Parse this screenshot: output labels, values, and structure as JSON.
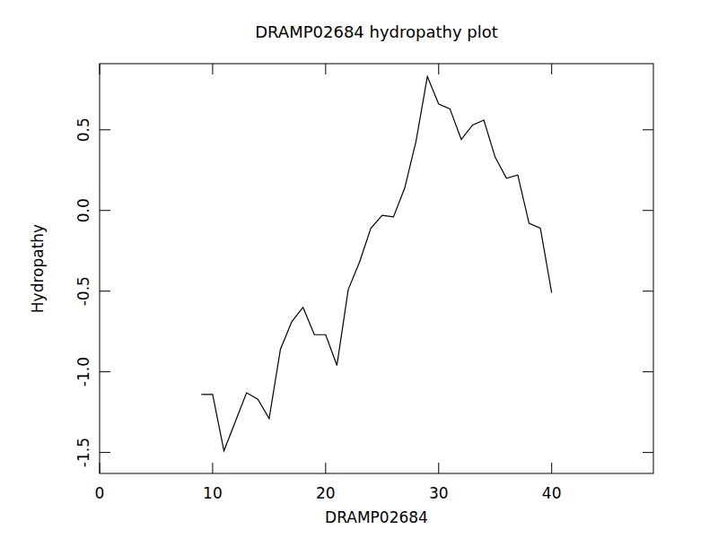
{
  "chart_data": {
    "type": "line",
    "title": "DRAMP02684 hydropathy plot",
    "x_label": "DRAMP02684",
    "y_label": "Hydropathy",
    "x": [
      9,
      10,
      11,
      12,
      13,
      14,
      15,
      16,
      17,
      18,
      19,
      20,
      21,
      22,
      23,
      24,
      25,
      26,
      27,
      28,
      29,
      30,
      31,
      32,
      33,
      34,
      35,
      36,
      37,
      38,
      39,
      40
    ],
    "values": [
      -1.14,
      -1.14,
      -1.49,
      -1.31,
      -1.13,
      -1.17,
      -1.29,
      -0.86,
      -0.69,
      -0.6,
      -0.77,
      -0.77,
      -0.96,
      -0.49,
      -0.32,
      -0.11,
      -0.03,
      -0.04,
      0.14,
      0.43,
      0.83,
      0.66,
      0.63,
      0.44,
      0.53,
      0.56,
      0.33,
      0.2,
      0.22,
      -0.08,
      -0.11,
      -0.51
    ],
    "color": "#000000",
    "xlim": [
      0,
      49
    ],
    "xticks": [
      0,
      10,
      20,
      30,
      40
    ],
    "ylim": [
      -1.63,
      0.91
    ],
    "yticks": [
      {
        "value": -1.5,
        "label": "-1.5"
      },
      {
        "value": -1.0,
        "label": "-1.0"
      },
      -0.5,
      {
        "value": 0.0,
        "label": "0.0"
      },
      0.5
    ],
    "grid": false
  }
}
